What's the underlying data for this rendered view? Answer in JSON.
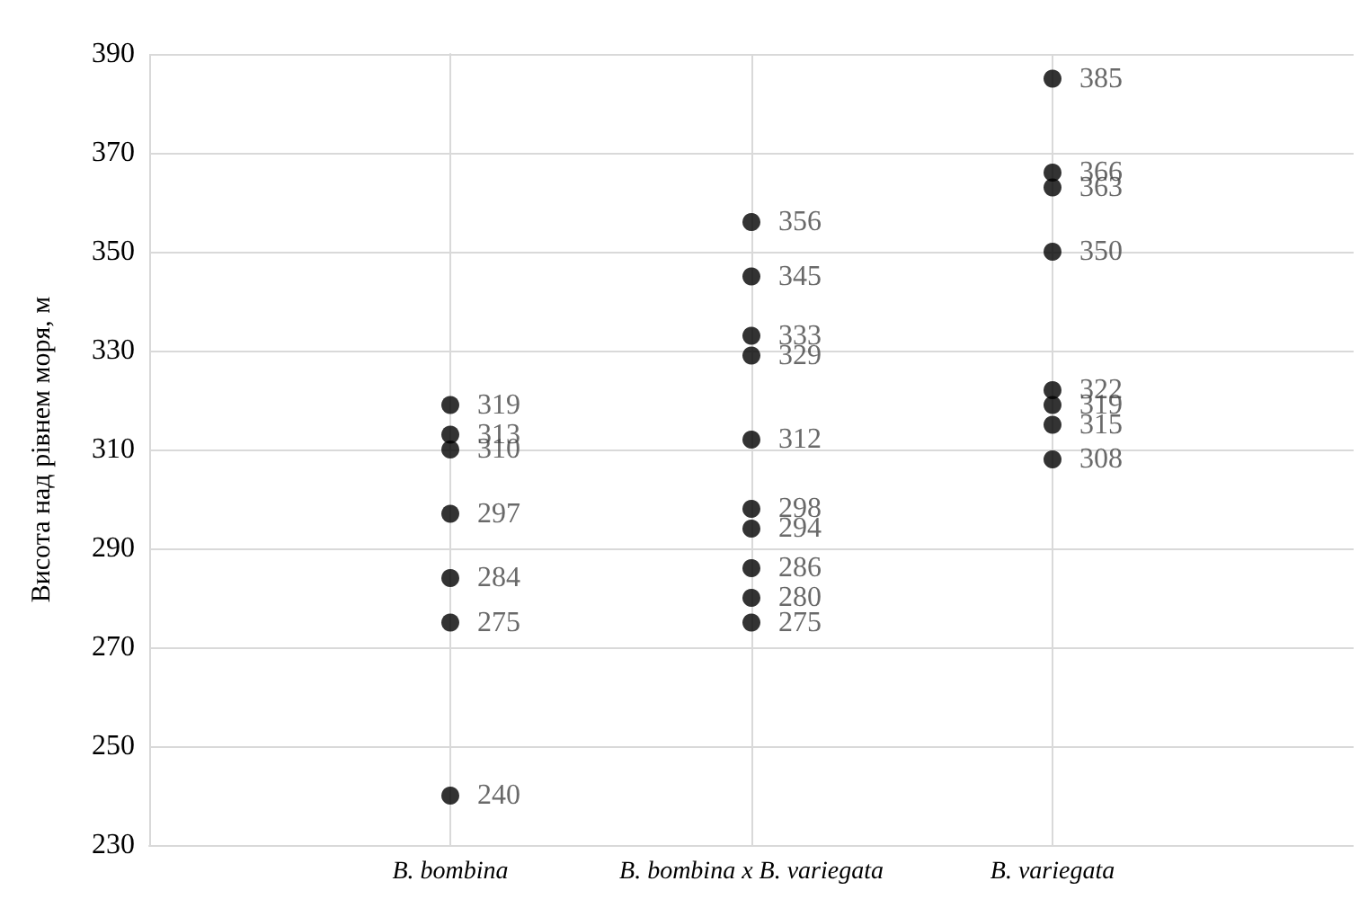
{
  "chart_data": {
    "type": "scatter",
    "ylabel": "Висота над рівнем моря, м",
    "categories": [
      "B. bombina",
      "B. bombina x B. variegata",
      "B. variegata"
    ],
    "series": [
      {
        "color": "#000000",
        "x": [
          "B. bombina",
          "B. bombina",
          "B. bombina",
          "B. bombina",
          "B. bombina",
          "B. bombina",
          "B. bombina",
          "B. bombina x B. variegata",
          "B. bombina x B. variegata",
          "B. bombina x B. variegata",
          "B. bombina x B. variegata",
          "B. bombina x B. variegata",
          "B. bombina x B. variegata",
          "B. bombina x B. variegata",
          "B. bombina x B. variegata",
          "B. bombina x B. variegata",
          "B. bombina x B. variegata",
          "B. variegata",
          "B. variegata",
          "B. variegata",
          "B. variegata",
          "B. variegata",
          "B. variegata",
          "B. variegata",
          "B. variegata"
        ],
        "values": [
          319,
          313,
          310,
          297,
          284,
          275,
          240,
          356,
          345,
          333,
          329,
          312,
          298,
          294,
          286,
          280,
          275,
          385,
          366,
          363,
          350,
          322,
          319,
          315,
          308
        ]
      }
    ],
    "ylim": [
      230,
      390
    ],
    "yticks": [
      230,
      250,
      270,
      290,
      310,
      330,
      350,
      370,
      390
    ],
    "grid": true,
    "marker": "circle",
    "data_labels": true
  }
}
